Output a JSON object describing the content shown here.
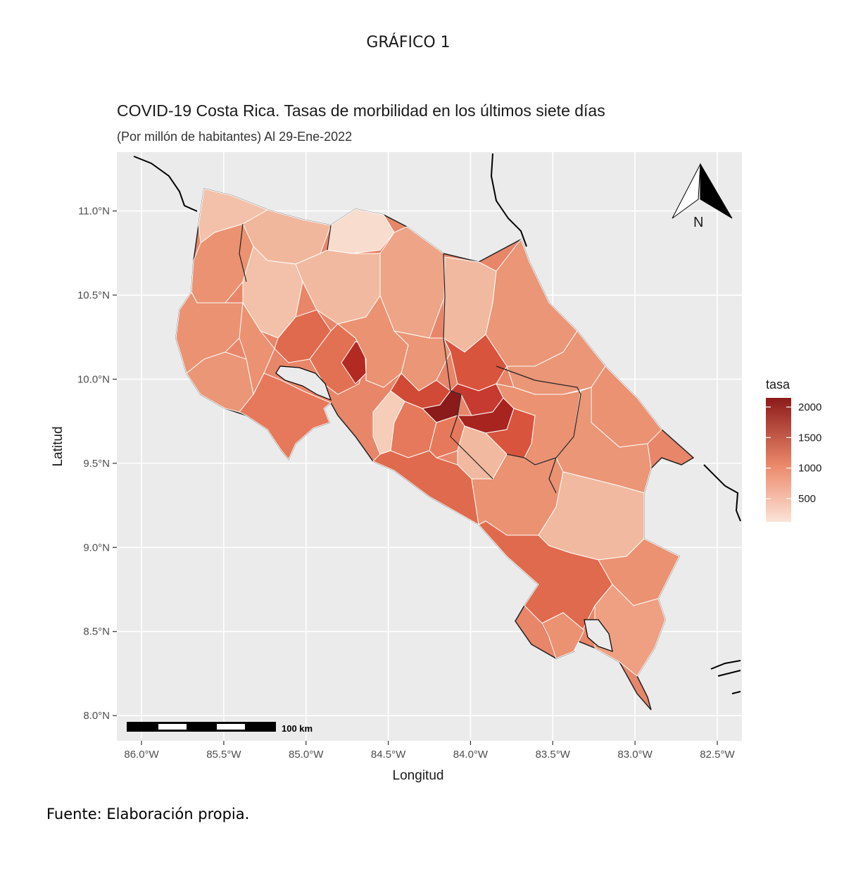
{
  "document": {
    "heading": "GRÁFICO 1",
    "source": "Fuente: Elaboración propia."
  },
  "chart_data": {
    "type": "choropleth-map",
    "title": "COVID-19 Costa Rica. Tasas de morbilidad en los últimos siete días",
    "subtitle": "(Por millón de habitantes) Al 29-Ene-2022",
    "xlabel": "Longitud",
    "ylabel": "Latitud",
    "xlim": [
      -86.15,
      -82.35
    ],
    "ylim": [
      7.85,
      11.35
    ],
    "x_ticks": [
      {
        "value": -86.0,
        "label": "86.0°W"
      },
      {
        "value": -85.5,
        "label": "85.5°W"
      },
      {
        "value": -85.0,
        "label": "85.0°W"
      },
      {
        "value": -84.5,
        "label": "84.5°W"
      },
      {
        "value": -84.0,
        "label": "84.0°W"
      },
      {
        "value": -83.5,
        "label": "83.5°W"
      },
      {
        "value": -83.0,
        "label": "83.0°W"
      },
      {
        "value": -82.5,
        "label": "82.5°W"
      }
    ],
    "y_ticks": [
      {
        "value": 11.0,
        "label": "11.0°N"
      },
      {
        "value": 10.5,
        "label": "10.5°N"
      },
      {
        "value": 10.0,
        "label": "10.0°N"
      },
      {
        "value": 9.5,
        "label": "9.5°N"
      },
      {
        "value": 9.0,
        "label": "9.0°N"
      },
      {
        "value": 8.5,
        "label": "8.5°N"
      },
      {
        "value": 8.0,
        "label": "8.0°N"
      }
    ],
    "legend": {
      "title": "tasa",
      "placement": "right",
      "range": [
        120,
        2150
      ],
      "breaks": [
        {
          "value": 2000,
          "label": "2000"
        },
        {
          "value": 1500,
          "label": "1500"
        },
        {
          "value": 1000,
          "label": "1000"
        },
        {
          "value": 500,
          "label": "500"
        }
      ],
      "color_low": "#fbe3d8",
      "color_high": "#8b1a1a"
    },
    "scale_bar_label": "100 km",
    "north_arrow_label": "N",
    "grid": true,
    "panel_color": "#ebebeb"
  }
}
